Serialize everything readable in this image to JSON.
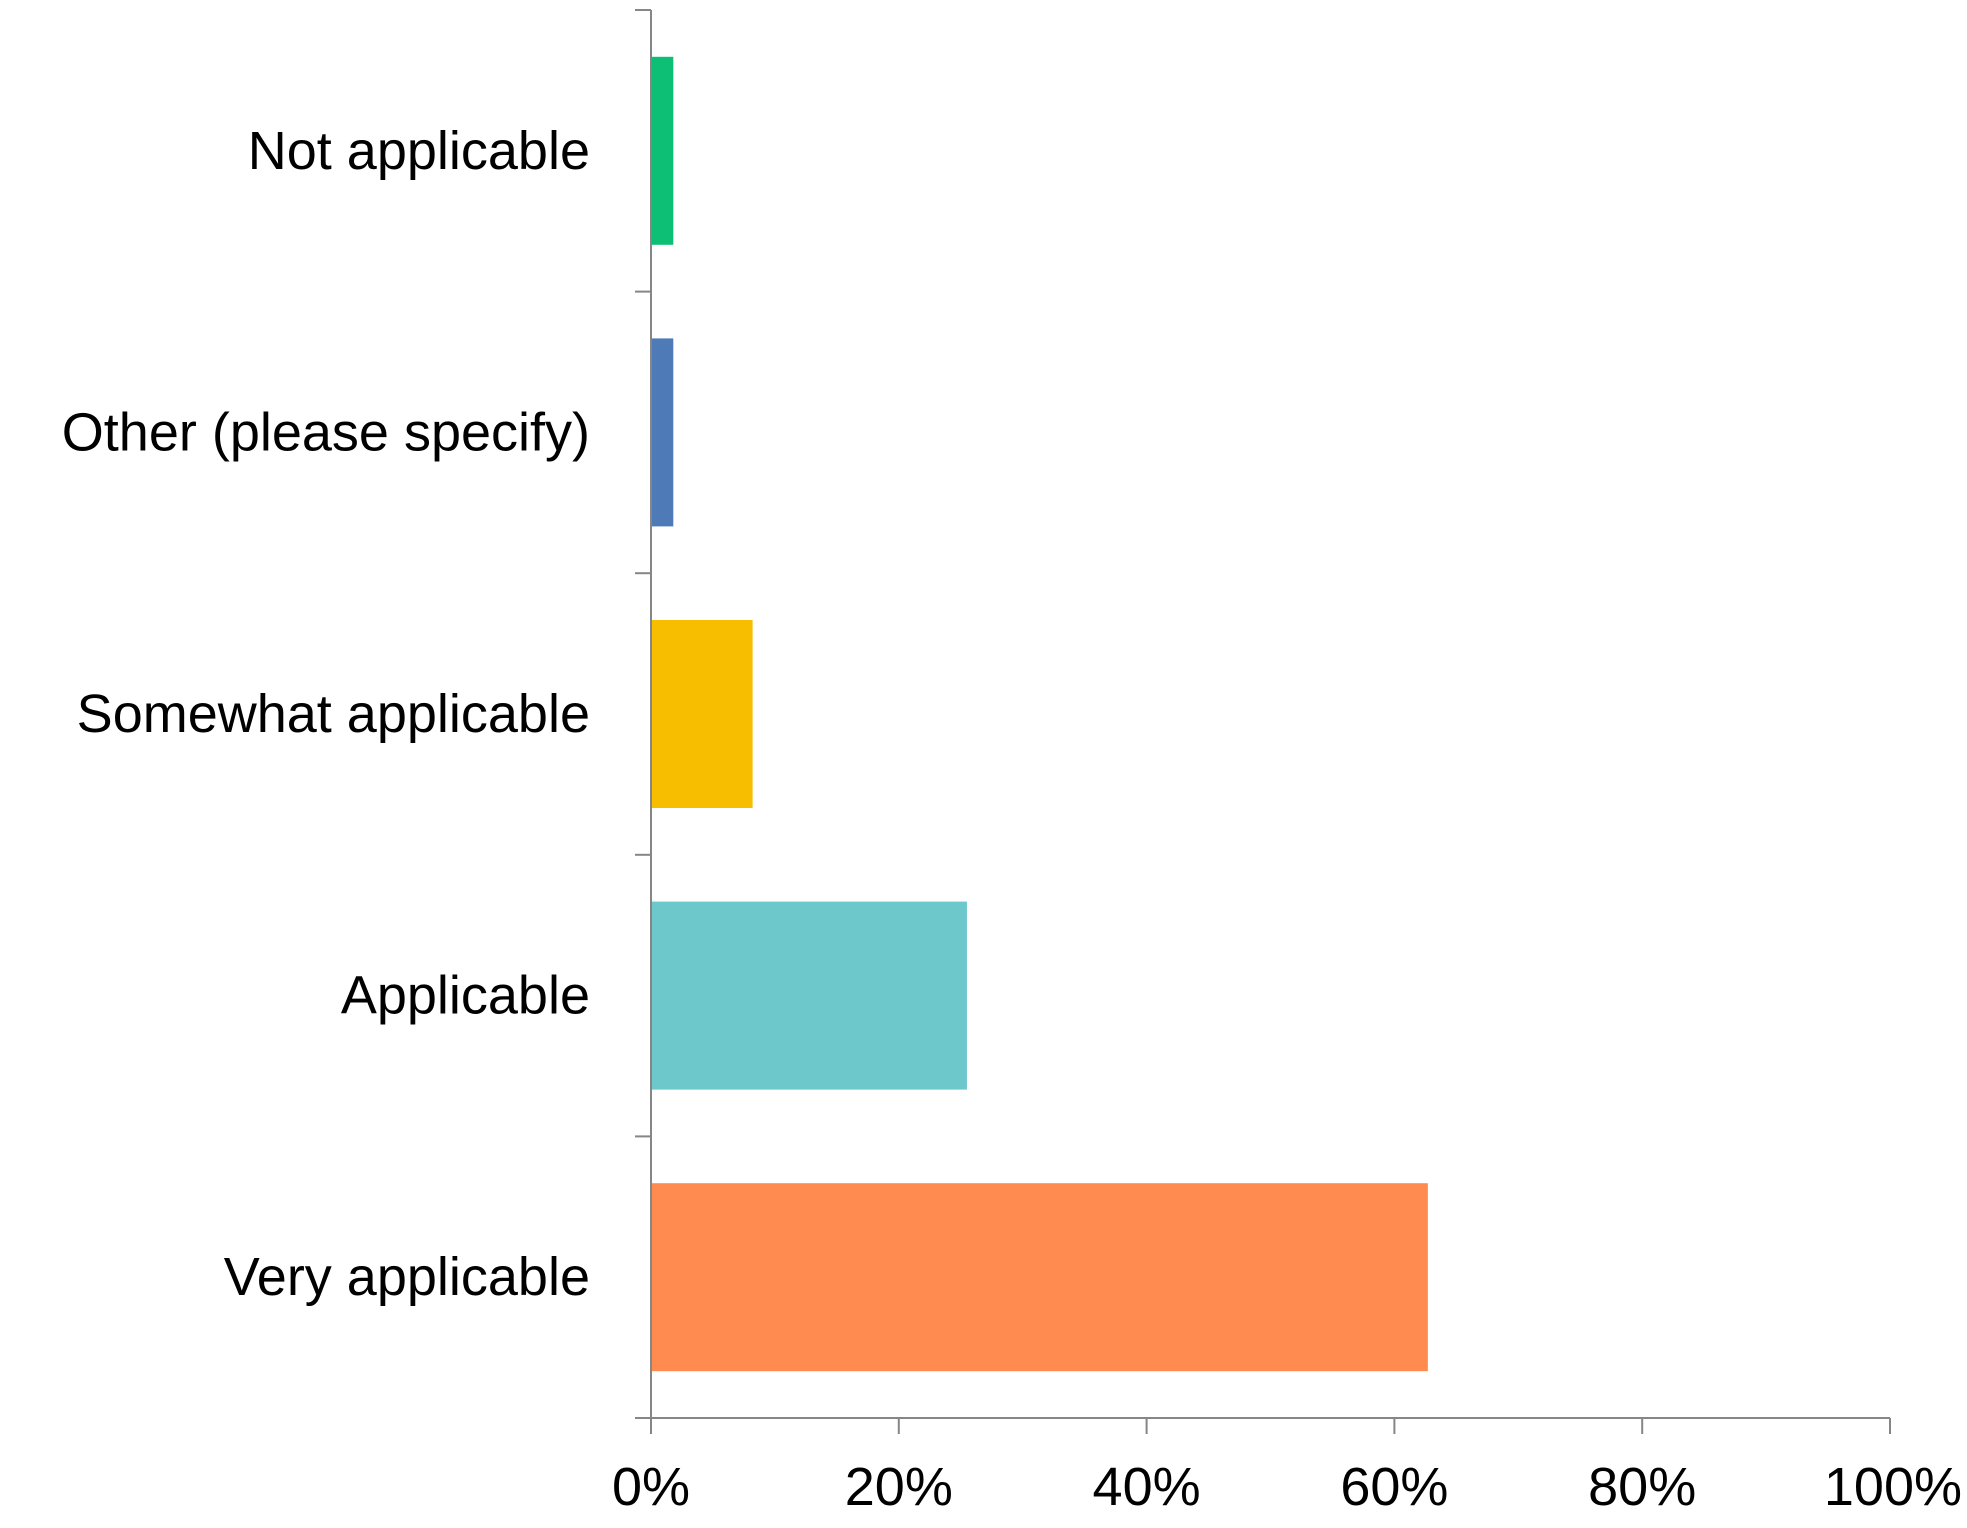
{
  "chart_data": {
    "type": "bar",
    "orientation": "horizontal",
    "title": "",
    "xlabel": "",
    "ylabel": "",
    "categories": [
      "Not applicable",
      "Other (please specify)",
      "Somewhat applicable",
      "Applicable",
      "Very applicable"
    ],
    "values": [
      1.8,
      1.8,
      8.2,
      25.5,
      62.7
    ],
    "colors": [
      "#0DBF75",
      "#4F7AB8",
      "#F7BE00",
      "#6CC8CB",
      "#FF8B50"
    ],
    "xlim": [
      0,
      100
    ],
    "x_ticks": [
      "0%",
      "20%",
      "40%",
      "60%",
      "80%",
      "100%"
    ],
    "x_tick_values": [
      0,
      20,
      40,
      60,
      80,
      100
    ],
    "grid": false,
    "legend": "none",
    "axis_color": "#868686"
  }
}
